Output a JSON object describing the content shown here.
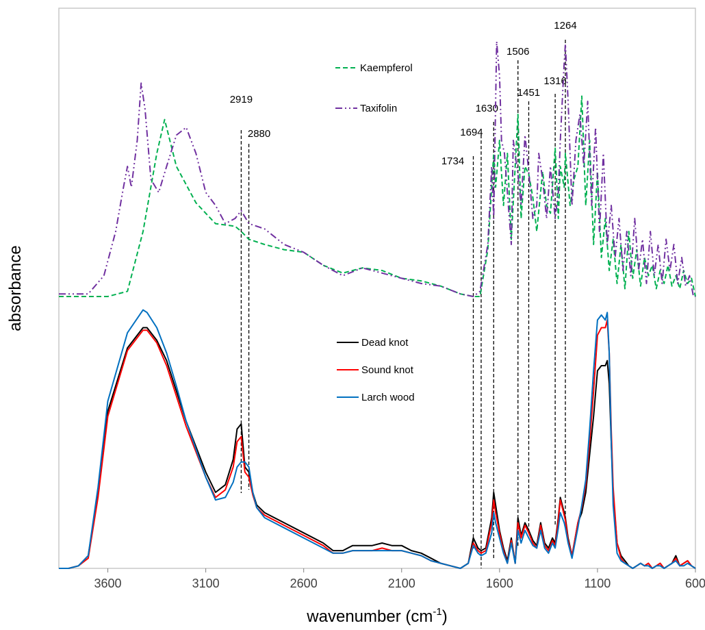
{
  "chart_data": {
    "type": "line",
    "title": "",
    "xlabel": "wavenumber (cm-1)",
    "xlabel_main": "wavenumber  (cm",
    "xlabel_sup": "-1",
    "xlabel_end": ")",
    "ylabel": "absorbance",
    "xlim": [
      3850,
      600
    ],
    "x_reversed": true,
    "y_ticks_shown": false,
    "grid": false,
    "legend_placement": "center (two groups: upper and lower traces)",
    "xticks": [
      3600,
      3100,
      2600,
      2100,
      1600,
      1100,
      600
    ],
    "xtick_labels": [
      "3600",
      "3100",
      "2600",
      "2100",
      "1600",
      "1100",
      "600"
    ],
    "peak_markers": [
      {
        "label": "2919",
        "x": 2919
      },
      {
        "label": "2880",
        "x": 2880
      },
      {
        "label": "1734",
        "x": 1734
      },
      {
        "label": "1694",
        "x": 1694
      },
      {
        "label": "1630",
        "x": 1630
      },
      {
        "label": "1506",
        "x": 1506
      },
      {
        "label": "1451",
        "x": 1451
      },
      {
        "label": "1316",
        "x": 1316
      },
      {
        "label": "1264",
        "x": 1264
      }
    ],
    "series": [
      {
        "name": "Kaempferol",
        "color": "#00b050",
        "dash": "dashed",
        "x": [
          3850,
          3700,
          3600,
          3500,
          3420,
          3350,
          3310,
          3250,
          3150,
          3050,
          2950,
          2919,
          2880,
          2800,
          2700,
          2600,
          2500,
          2400,
          2300,
          2200,
          2100,
          2000,
          1900,
          1800,
          1734,
          1700,
          1660,
          1630,
          1620,
          1600,
          1580,
          1560,
          1540,
          1520,
          1506,
          1490,
          1470,
          1451,
          1430,
          1410,
          1380,
          1360,
          1340,
          1316,
          1300,
          1290,
          1270,
          1264,
          1240,
          1220,
          1200,
          1180,
          1160,
          1140,
          1120,
          1100,
          1080,
          1060,
          1040,
          1020,
          1000,
          980,
          960,
          940,
          920,
          900,
          880,
          860,
          840,
          820,
          800,
          780,
          760,
          740,
          720,
          700,
          680,
          660,
          640,
          620,
          600
        ],
        "y": [
          0.0,
          0.0,
          0.0,
          0.02,
          0.25,
          0.55,
          0.68,
          0.5,
          0.36,
          0.28,
          0.27,
          0.25,
          0.22,
          0.2,
          0.18,
          0.17,
          0.12,
          0.09,
          0.11,
          0.1,
          0.07,
          0.06,
          0.04,
          0.01,
          0.0,
          0.0,
          0.18,
          0.55,
          0.42,
          0.6,
          0.35,
          0.55,
          0.22,
          0.5,
          0.7,
          0.3,
          0.5,
          0.47,
          0.38,
          0.25,
          0.48,
          0.35,
          0.32,
          0.57,
          0.3,
          0.5,
          0.42,
          0.55,
          0.35,
          0.45,
          0.5,
          0.77,
          0.35,
          0.6,
          0.2,
          0.48,
          0.15,
          0.3,
          0.1,
          0.22,
          0.05,
          0.2,
          0.03,
          0.25,
          0.07,
          0.18,
          0.04,
          0.15,
          0.08,
          0.12,
          0.03,
          0.1,
          0.05,
          0.12,
          0.04,
          0.08,
          0.03,
          0.1,
          0.05,
          0.07,
          0.0
        ]
      },
      {
        "name": "Taxifolin",
        "color": "#7030a0",
        "dash": "dashdotdot",
        "x": [
          3850,
          3700,
          3620,
          3560,
          3520,
          3500,
          3480,
          3450,
          3430,
          3410,
          3380,
          3340,
          3300,
          3250,
          3200,
          3150,
          3100,
          3050,
          3000,
          2950,
          2919,
          2880,
          2800,
          2700,
          2600,
          2500,
          2400,
          2300,
          2200,
          2100,
          2000,
          1900,
          1800,
          1734,
          1700,
          1660,
          1640,
          1630,
          1615,
          1600,
          1590,
          1575,
          1560,
          1540,
          1530,
          1506,
          1490,
          1470,
          1451,
          1430,
          1410,
          1400,
          1380,
          1360,
          1340,
          1316,
          1300,
          1290,
          1270,
          1264,
          1250,
          1230,
          1210,
          1190,
          1170,
          1150,
          1130,
          1110,
          1090,
          1070,
          1050,
          1030,
          1010,
          990,
          970,
          950,
          930,
          910,
          890,
          870,
          850,
          830,
          810,
          790,
          770,
          750,
          730,
          710,
          690,
          670,
          650,
          630,
          610,
          600
        ],
        "y": [
          0.01,
          0.01,
          0.08,
          0.25,
          0.42,
          0.5,
          0.42,
          0.6,
          0.82,
          0.72,
          0.45,
          0.4,
          0.5,
          0.62,
          0.65,
          0.55,
          0.4,
          0.35,
          0.28,
          0.3,
          0.33,
          0.28,
          0.26,
          0.2,
          0.17,
          0.12,
          0.08,
          0.11,
          0.09,
          0.07,
          0.05,
          0.04,
          0.01,
          0.0,
          0.02,
          0.2,
          0.5,
          0.3,
          0.98,
          0.85,
          0.6,
          0.55,
          0.4,
          0.2,
          0.6,
          0.47,
          0.35,
          0.62,
          0.48,
          0.3,
          0.35,
          0.55,
          0.45,
          0.3,
          0.5,
          0.3,
          0.4,
          0.6,
          0.9,
          0.97,
          0.75,
          0.35,
          0.6,
          0.7,
          0.5,
          0.75,
          0.35,
          0.65,
          0.25,
          0.55,
          0.2,
          0.35,
          0.15,
          0.3,
          0.1,
          0.25,
          0.08,
          0.3,
          0.1,
          0.22,
          0.05,
          0.25,
          0.08,
          0.2,
          0.05,
          0.22,
          0.1,
          0.2,
          0.05,
          0.15,
          0.04,
          0.08,
          0.0,
          0.0
        ]
      },
      {
        "name": "Dead knot",
        "color": "#000000",
        "dash": "solid",
        "x": [
          3850,
          3800,
          3750,
          3700,
          3650,
          3600,
          3500,
          3420,
          3400,
          3350,
          3300,
          3250,
          3200,
          3100,
          3050,
          3000,
          2960,
          2940,
          2919,
          2900,
          2880,
          2860,
          2840,
          2800,
          2700,
          2600,
          2500,
          2450,
          2400,
          2350,
          2300,
          2250,
          2200,
          2150,
          2100,
          2050,
          2000,
          1950,
          1900,
          1850,
          1800,
          1760,
          1734,
          1710,
          1694,
          1670,
          1640,
          1630,
          1620,
          1600,
          1580,
          1560,
          1540,
          1520,
          1506,
          1490,
          1470,
          1451,
          1430,
          1410,
          1390,
          1370,
          1350,
          1330,
          1316,
          1300,
          1290,
          1270,
          1264,
          1250,
          1230,
          1200,
          1180,
          1160,
          1140,
          1120,
          1100,
          1080,
          1060,
          1050,
          1040,
          1030,
          1020,
          1000,
          980,
          960,
          940,
          920,
          900,
          880,
          860,
          840,
          820,
          800,
          780,
          760,
          740,
          720,
          700,
          680,
          660,
          640,
          620,
          600
        ],
        "y": [
          0.0,
          0.0,
          0.01,
          0.05,
          0.3,
          0.62,
          0.87,
          0.95,
          0.95,
          0.9,
          0.82,
          0.7,
          0.58,
          0.38,
          0.3,
          0.33,
          0.43,
          0.55,
          0.57,
          0.4,
          0.38,
          0.3,
          0.25,
          0.22,
          0.18,
          0.14,
          0.1,
          0.07,
          0.07,
          0.09,
          0.09,
          0.09,
          0.1,
          0.09,
          0.09,
          0.07,
          0.06,
          0.04,
          0.02,
          0.01,
          0.0,
          0.02,
          0.12,
          0.08,
          0.07,
          0.08,
          0.2,
          0.3,
          0.25,
          0.15,
          0.08,
          0.03,
          0.12,
          0.02,
          0.2,
          0.13,
          0.18,
          0.15,
          0.11,
          0.09,
          0.18,
          0.1,
          0.08,
          0.12,
          0.1,
          0.2,
          0.28,
          0.22,
          0.2,
          0.12,
          0.05,
          0.18,
          0.22,
          0.3,
          0.45,
          0.6,
          0.78,
          0.8,
          0.8,
          0.82,
          0.73,
          0.5,
          0.3,
          0.1,
          0.05,
          0.03,
          0.01,
          0.0,
          0.01,
          0.02,
          0.01,
          0.02,
          0.0,
          0.01,
          0.02,
          0.0,
          0.01,
          0.02,
          0.05,
          0.01,
          0.02,
          0.03,
          0.01,
          0.0
        ]
      },
      {
        "name": "Sound knot",
        "color": "#ff0000",
        "dash": "solid",
        "x": [
          3850,
          3800,
          3750,
          3700,
          3650,
          3600,
          3500,
          3420,
          3400,
          3350,
          3300,
          3250,
          3200,
          3100,
          3050,
          3000,
          2960,
          2940,
          2919,
          2900,
          2880,
          2860,
          2840,
          2800,
          2700,
          2600,
          2500,
          2450,
          2400,
          2350,
          2300,
          2250,
          2200,
          2150,
          2100,
          2050,
          2000,
          1950,
          1900,
          1850,
          1800,
          1760,
          1734,
          1710,
          1694,
          1670,
          1640,
          1630,
          1620,
          1600,
          1580,
          1560,
          1540,
          1520,
          1506,
          1490,
          1470,
          1451,
          1430,
          1410,
          1390,
          1370,
          1350,
          1330,
          1316,
          1300,
          1290,
          1270,
          1264,
          1250,
          1230,
          1200,
          1180,
          1160,
          1140,
          1120,
          1100,
          1080,
          1060,
          1050,
          1040,
          1030,
          1020,
          1000,
          980,
          960,
          940,
          920,
          900,
          880,
          860,
          840,
          820,
          800,
          780,
          760,
          740,
          720,
          700,
          680,
          660,
          640,
          620,
          600
        ],
        "y": [
          0.0,
          0.0,
          0.01,
          0.04,
          0.28,
          0.6,
          0.86,
          0.94,
          0.94,
          0.89,
          0.8,
          0.68,
          0.56,
          0.36,
          0.28,
          0.31,
          0.4,
          0.5,
          0.52,
          0.38,
          0.36,
          0.29,
          0.24,
          0.21,
          0.17,
          0.13,
          0.09,
          0.06,
          0.06,
          0.07,
          0.07,
          0.07,
          0.08,
          0.07,
          0.07,
          0.06,
          0.05,
          0.03,
          0.02,
          0.01,
          0.0,
          0.02,
          0.1,
          0.07,
          0.06,
          0.07,
          0.18,
          0.27,
          0.22,
          0.14,
          0.07,
          0.02,
          0.11,
          0.02,
          0.18,
          0.12,
          0.17,
          0.14,
          0.1,
          0.08,
          0.17,
          0.09,
          0.07,
          0.11,
          0.09,
          0.19,
          0.27,
          0.21,
          0.19,
          0.11,
          0.05,
          0.18,
          0.24,
          0.33,
          0.5,
          0.7,
          0.92,
          0.95,
          0.95,
          0.98,
          0.85,
          0.55,
          0.32,
          0.1,
          0.04,
          0.02,
          0.01,
          0.0,
          0.01,
          0.02,
          0.01,
          0.02,
          0.0,
          0.01,
          0.02,
          0.0,
          0.01,
          0.02,
          0.04,
          0.01,
          0.02,
          0.03,
          0.01,
          0.0
        ]
      },
      {
        "name": "Larch wood",
        "color": "#0070c0",
        "dash": "solid",
        "x": [
          3850,
          3800,
          3750,
          3700,
          3650,
          3600,
          3500,
          3420,
          3400,
          3350,
          3300,
          3250,
          3200,
          3100,
          3050,
          3000,
          2960,
          2940,
          2919,
          2900,
          2880,
          2860,
          2840,
          2800,
          2700,
          2600,
          2500,
          2450,
          2400,
          2350,
          2300,
          2250,
          2200,
          2150,
          2100,
          2050,
          2000,
          1950,
          1900,
          1850,
          1800,
          1760,
          1734,
          1710,
          1694,
          1670,
          1640,
          1630,
          1620,
          1600,
          1580,
          1560,
          1540,
          1520,
          1506,
          1490,
          1470,
          1451,
          1430,
          1410,
          1390,
          1370,
          1350,
          1330,
          1316,
          1300,
          1290,
          1270,
          1264,
          1250,
          1230,
          1200,
          1180,
          1160,
          1140,
          1120,
          1100,
          1080,
          1060,
          1050,
          1040,
          1030,
          1020,
          1000,
          980,
          960,
          940,
          920,
          900,
          880,
          860,
          840,
          820,
          800,
          780,
          760,
          740,
          720,
          700,
          680,
          660,
          640,
          620,
          600
        ],
        "y": [
          0.0,
          0.0,
          0.01,
          0.05,
          0.32,
          0.66,
          0.93,
          1.02,
          1.01,
          0.95,
          0.85,
          0.72,
          0.58,
          0.36,
          0.27,
          0.28,
          0.34,
          0.4,
          0.42,
          0.42,
          0.4,
          0.3,
          0.24,
          0.2,
          0.16,
          0.12,
          0.08,
          0.06,
          0.06,
          0.07,
          0.07,
          0.07,
          0.07,
          0.07,
          0.07,
          0.06,
          0.05,
          0.03,
          0.02,
          0.01,
          0.0,
          0.02,
          0.09,
          0.06,
          0.05,
          0.06,
          0.14,
          0.22,
          0.18,
          0.12,
          0.06,
          0.02,
          0.1,
          0.02,
          0.15,
          0.1,
          0.15,
          0.12,
          0.09,
          0.08,
          0.15,
          0.08,
          0.06,
          0.1,
          0.08,
          0.16,
          0.22,
          0.18,
          0.16,
          0.1,
          0.04,
          0.16,
          0.25,
          0.35,
          0.55,
          0.78,
          0.98,
          1.0,
          0.98,
          1.01,
          0.85,
          0.5,
          0.25,
          0.06,
          0.03,
          0.02,
          0.01,
          0.0,
          0.01,
          0.02,
          0.01,
          0.01,
          0.0,
          0.01,
          0.01,
          0.0,
          0.01,
          0.02,
          0.03,
          0.01,
          0.01,
          0.02,
          0.01,
          0.0
        ]
      }
    ]
  }
}
